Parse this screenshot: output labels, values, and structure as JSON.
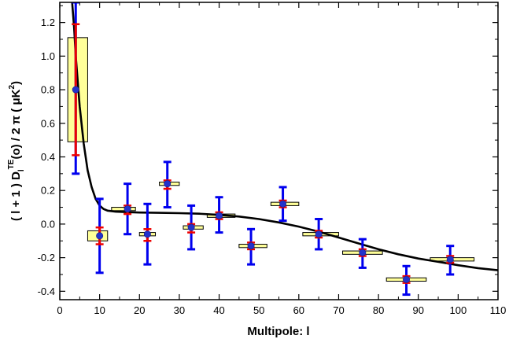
{
  "chart_data": {
    "type": "scatter",
    "title": "",
    "xlabel": "Multipole: l",
    "ylabel": "( l + 1 ) D",
    "ylabel_sub": "l",
    "ylabel_sup": "TE",
    "ylabel_tail": "(o) / 2 π ( μK",
    "ylabel_unit_sup": "2",
    "ylabel_end": ")",
    "xlim": [
      0,
      110
    ],
    "ylim": [
      -0.45,
      1.32
    ],
    "x_ticks": [
      0,
      10,
      20,
      30,
      40,
      50,
      60,
      70,
      80,
      90,
      100,
      110
    ],
    "y_ticks": [
      -0.4,
      -0.2,
      0.0,
      0.2,
      0.4,
      0.6,
      0.8,
      1.0,
      1.2
    ],
    "x_tick_labels": [
      "0",
      "10",
      "20",
      "30",
      "40",
      "50",
      "60",
      "70",
      "80",
      "90",
      "100",
      "110"
    ],
    "y_tick_labels": [
      "-0.4",
      "-0.2",
      "0.0",
      "0.2",
      "0.4",
      "0.6",
      "0.8",
      "1.0",
      "1.2"
    ],
    "grid": false,
    "colors": {
      "box_fill": "#ffff99",
      "box_stroke": "#000000",
      "outer_error": "#0000ee",
      "inner_error": "#ee0000",
      "marker": "#2233cc",
      "model_curve": "#000000"
    },
    "points": [
      {
        "x": 4,
        "y": 0.8,
        "box_x": [
          2,
          7
        ],
        "box_y": [
          0.49,
          1.11
        ],
        "err_outer": [
          0.3,
          1.32
        ],
        "err_inner": [
          0.41,
          1.19
        ]
      },
      {
        "x": 10,
        "y": -0.07,
        "box_x": [
          7,
          12
        ],
        "box_y": [
          -0.1,
          -0.04
        ],
        "err_outer": [
          -0.29,
          0.15
        ],
        "err_inner": [
          -0.12,
          -0.02
        ]
      },
      {
        "x": 17,
        "y": 0.09,
        "box_x": [
          13,
          19
        ],
        "box_y": [
          0.08,
          0.1
        ],
        "err_outer": [
          -0.06,
          0.24
        ],
        "err_inner": [
          0.06,
          0.11
        ]
      },
      {
        "x": 22,
        "y": -0.06,
        "box_x": [
          20,
          24
        ],
        "box_y": [
          -0.07,
          -0.05
        ],
        "err_outer": [
          -0.24,
          0.12
        ],
        "err_inner": [
          -0.1,
          -0.03
        ]
      },
      {
        "x": 27,
        "y": 0.24,
        "box_x": [
          25,
          30
        ],
        "box_y": [
          0.23,
          0.25
        ],
        "err_outer": [
          0.1,
          0.37
        ],
        "err_inner": [
          0.21,
          0.26
        ]
      },
      {
        "x": 33,
        "y": -0.02,
        "box_x": [
          31,
          36
        ],
        "box_y": [
          -0.03,
          -0.01
        ],
        "err_outer": [
          -0.15,
          0.11
        ],
        "err_inner": [
          -0.05,
          0.0
        ]
      },
      {
        "x": 40,
        "y": 0.05,
        "box_x": [
          37,
          44
        ],
        "box_y": [
          0.04,
          0.06
        ],
        "err_outer": [
          -0.05,
          0.16
        ],
        "err_inner": [
          0.03,
          0.07
        ]
      },
      {
        "x": 48,
        "y": -0.13,
        "box_x": [
          45,
          52
        ],
        "box_y": [
          -0.14,
          -0.12
        ],
        "err_outer": [
          -0.24,
          -0.03
        ],
        "err_inner": [
          -0.15,
          -0.11
        ]
      },
      {
        "x": 56,
        "y": 0.12,
        "box_x": [
          53,
          60
        ],
        "box_y": [
          0.11,
          0.13
        ],
        "err_outer": [
          0.02,
          0.22
        ],
        "err_inner": [
          0.1,
          0.14
        ]
      },
      {
        "x": 65,
        "y": -0.06,
        "box_x": [
          61,
          70
        ],
        "box_y": [
          -0.07,
          -0.05
        ],
        "err_outer": [
          -0.15,
          0.03
        ],
        "err_inner": [
          -0.08,
          -0.04
        ]
      },
      {
        "x": 76,
        "y": -0.17,
        "box_x": [
          71,
          81
        ],
        "box_y": [
          -0.18,
          -0.16
        ],
        "err_outer": [
          -0.26,
          -0.09
        ],
        "err_inner": [
          -0.19,
          -0.15
        ]
      },
      {
        "x": 87,
        "y": -0.33,
        "box_x": [
          82,
          92
        ],
        "box_y": [
          -0.34,
          -0.32
        ],
        "err_outer": [
          -0.42,
          -0.25
        ],
        "err_inner": [
          -0.35,
          -0.31
        ]
      },
      {
        "x": 98,
        "y": -0.21,
        "box_x": [
          93,
          104
        ],
        "box_y": [
          -0.22,
          -0.2
        ],
        "err_outer": [
          -0.3,
          -0.13
        ],
        "err_inner": [
          -0.23,
          -0.19
        ]
      }
    ],
    "model_curve": [
      [
        3.1,
        1.32
      ],
      [
        3.6,
        1.17
      ],
      [
        4,
        1.0
      ],
      [
        5,
        0.7
      ],
      [
        6,
        0.48
      ],
      [
        7,
        0.32
      ],
      [
        8,
        0.22
      ],
      [
        9,
        0.15
      ],
      [
        10,
        0.11
      ],
      [
        11,
        0.09
      ],
      [
        12,
        0.08
      ],
      [
        14,
        0.074
      ],
      [
        17,
        0.071
      ],
      [
        20,
        0.069
      ],
      [
        25,
        0.067
      ],
      [
        30,
        0.065
      ],
      [
        35,
        0.062
      ],
      [
        40,
        0.055
      ],
      [
        45,
        0.045
      ],
      [
        50,
        0.03
      ],
      [
        55,
        0.01
      ],
      [
        60,
        -0.015
      ],
      [
        65,
        -0.045
      ],
      [
        70,
        -0.08
      ],
      [
        75,
        -0.115
      ],
      [
        80,
        -0.15
      ],
      [
        85,
        -0.18
      ],
      [
        90,
        -0.205
      ],
      [
        95,
        -0.225
      ],
      [
        100,
        -0.245
      ],
      [
        105,
        -0.262
      ],
      [
        110,
        -0.275
      ]
    ]
  }
}
